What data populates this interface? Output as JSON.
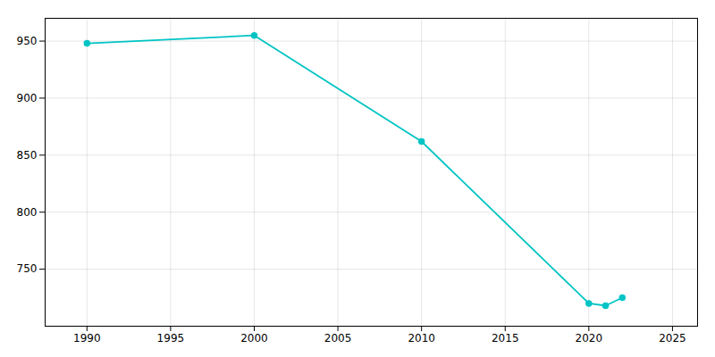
{
  "chart_data": {
    "type": "line",
    "x": [
      1990,
      2000,
      2010,
      2020,
      2021,
      2022
    ],
    "values": [
      948,
      955,
      862,
      720,
      718,
      725
    ],
    "color": "#00c4c4",
    "marker": "circle",
    "xlim": [
      1987.5,
      2026.5
    ],
    "ylim": [
      700,
      970
    ],
    "xticks": [
      1990,
      1995,
      2000,
      2005,
      2010,
      2015,
      2020,
      2025
    ],
    "yticks": [
      750,
      800,
      850,
      900,
      950
    ],
    "grid": true
  }
}
